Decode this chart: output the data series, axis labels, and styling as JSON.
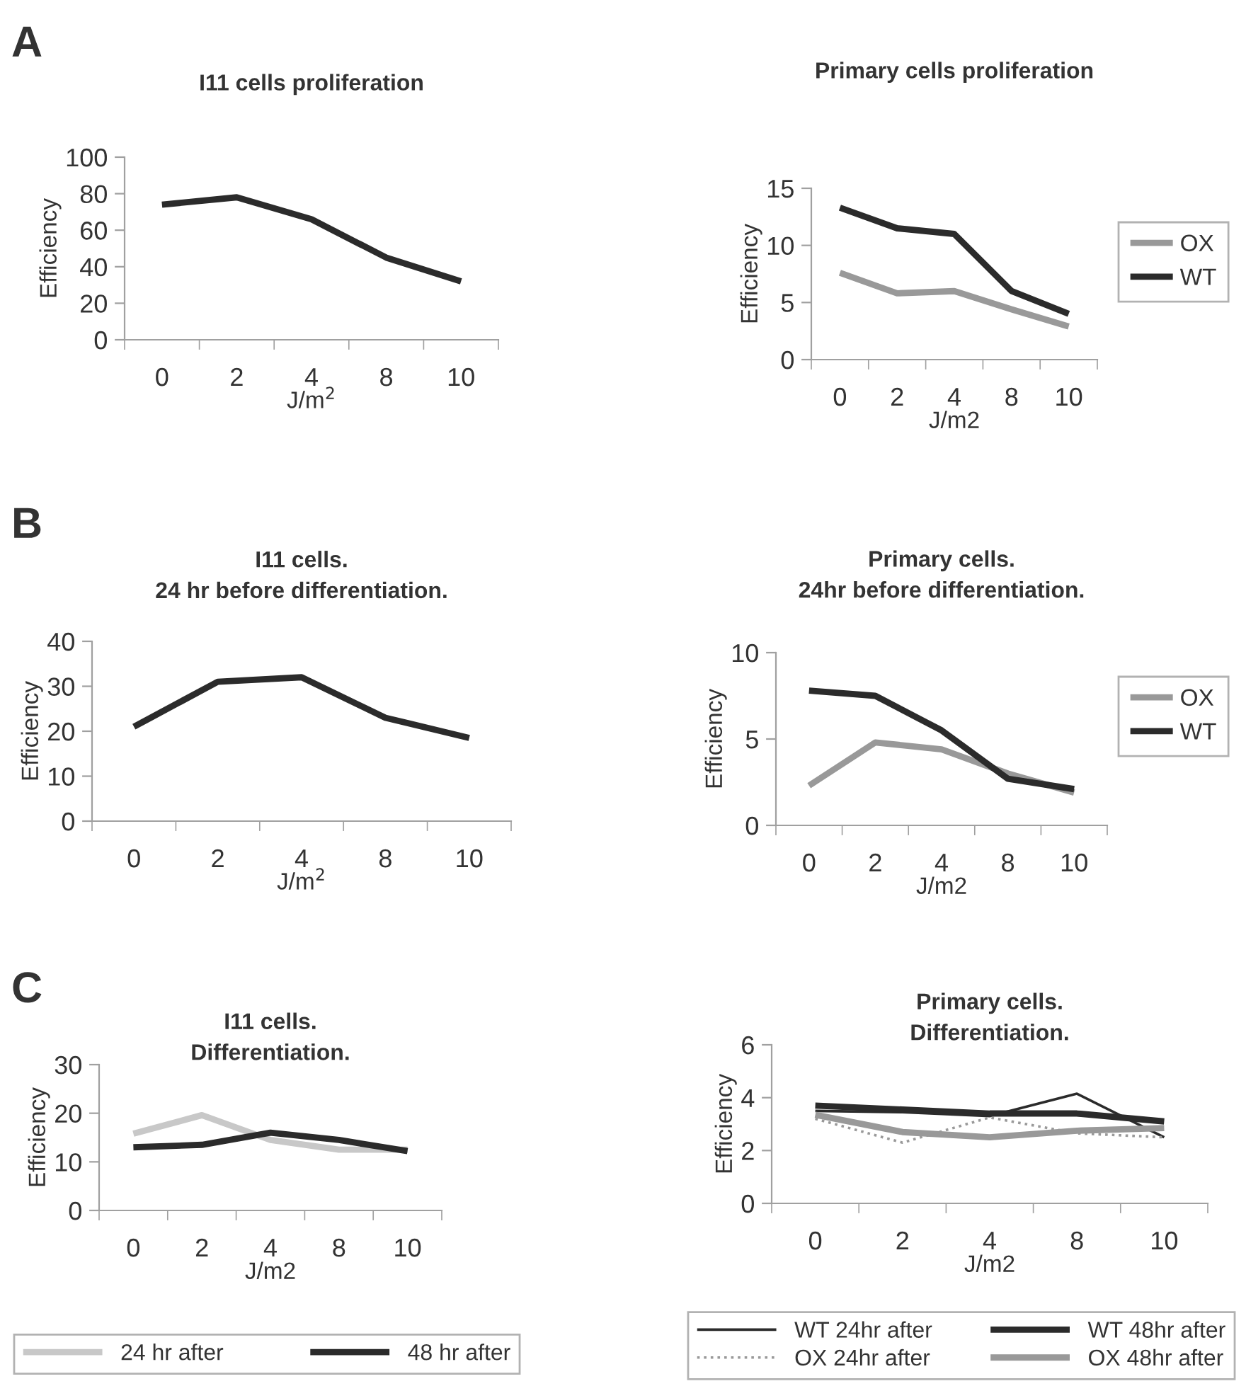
{
  "chart_data": [
    {
      "type": "line",
      "title": "I11 cells proliferation",
      "annotations": [
        "A"
      ],
      "xlabel": "J/m$^{2}$",
      "ylabel": "Efficiency",
      "categories": [
        "0",
        "2",
        "4",
        "8",
        "10"
      ],
      "ylim": [
        0,
        100
      ],
      "yticks": [
        0,
        20,
        40,
        60,
        80,
        100
      ],
      "grid": false,
      "legend": false,
      "series": [
        {
          "color": "#2b2b2b",
          "values": [
            74,
            78,
            66,
            45,
            32
          ]
        }
      ]
    },
    {
      "type": "line",
      "title": "Primary cells proliferation",
      "xlabel": "J/m2",
      "ylabel": "Efficiency",
      "categories": [
        "0",
        "2",
        "4",
        "8",
        "10"
      ],
      "ylim": [
        0,
        15
      ],
      "yticks": [
        0,
        5,
        10,
        15
      ],
      "grid": false,
      "legend": "right",
      "series": [
        {
          "name": "OX",
          "color": "#999999",
          "values": [
            7.6,
            5.8,
            6.0,
            4.4,
            2.9
          ]
        },
        {
          "name": "WT",
          "color": "#2b2b2b",
          "values": [
            13.3,
            11.5,
            11.0,
            6.0,
            4.0
          ]
        }
      ]
    },
    {
      "type": "line",
      "title": "I11 cells.\n24 hr before differentiation.",
      "annotations": [
        "B"
      ],
      "xlabel": "J/m$^{2}$",
      "ylabel": "Efficiency",
      "categories": [
        "0",
        "2",
        "4",
        "8",
        "10"
      ],
      "ylim": [
        0,
        40
      ],
      "yticks": [
        0,
        10,
        20,
        30,
        40
      ],
      "grid": false,
      "legend": false,
      "series": [
        {
          "color": "#2b2b2b",
          "values": [
            21,
            31,
            32,
            23,
            18.5
          ]
        }
      ]
    },
    {
      "type": "line",
      "title": "Primary cells.\n24hr before differentiation.",
      "xlabel": "J/m2",
      "ylabel": "Efficiency",
      "categories": [
        "0",
        "2",
        "4",
        "8",
        "10"
      ],
      "ylim": [
        0,
        10
      ],
      "yticks": [
        0,
        5,
        10
      ],
      "grid": false,
      "legend": "right",
      "series": [
        {
          "name": "OX",
          "color": "#999999",
          "values": [
            2.3,
            4.8,
            4.4,
            3.0,
            1.9
          ]
        },
        {
          "name": "WT",
          "color": "#2b2b2b",
          "values": [
            7.8,
            7.5,
            5.5,
            2.7,
            2.1
          ]
        }
      ]
    },
    {
      "type": "line",
      "title": "I11 cells.\nDifferentiation.",
      "annotations": [
        "C"
      ],
      "xlabel": "J/m2",
      "ylabel": "Efficiency",
      "categories": [
        "0",
        "2",
        "4",
        "8",
        "10"
      ],
      "ylim": [
        0,
        30
      ],
      "yticks": [
        0,
        10,
        20,
        30
      ],
      "grid": false,
      "legend": "bottom",
      "series": [
        {
          "name": "24 hr after",
          "color": "#c8c8c8",
          "values": [
            15.8,
            19.6,
            14.5,
            12.5,
            12.5
          ]
        },
        {
          "name": "48 hr after",
          "color": "#2b2b2b",
          "values": [
            13.0,
            13.5,
            16.0,
            14.5,
            12.2
          ]
        }
      ]
    },
    {
      "type": "line",
      "title": "Primary cells.\nDifferentiation.",
      "xlabel": "J/m2",
      "ylabel": "Efficiency",
      "categories": [
        "0",
        "2",
        "4",
        "8",
        "10"
      ],
      "ylim": [
        0,
        6
      ],
      "yticks": [
        0,
        2,
        4,
        6
      ],
      "grid": false,
      "legend": "bottom",
      "series": [
        {
          "name": "WT 24hr after",
          "color": "#2b2b2b",
          "values": [
            3.5,
            3.45,
            3.3,
            4.15,
            2.5
          ]
        },
        {
          "name": "WT 48hr after",
          "color": "#2b2b2b",
          "values": [
            3.7,
            3.55,
            3.4,
            3.4,
            3.1
          ]
        },
        {
          "name": "OX 24hr after",
          "color": "#999999",
          "line_style": "dotted",
          "values": [
            3.2,
            2.3,
            3.25,
            2.65,
            2.5
          ]
        },
        {
          "name": "OX 48hr after",
          "color": "#999999",
          "values": [
            3.35,
            2.7,
            2.5,
            2.75,
            2.85
          ]
        }
      ]
    }
  ]
}
